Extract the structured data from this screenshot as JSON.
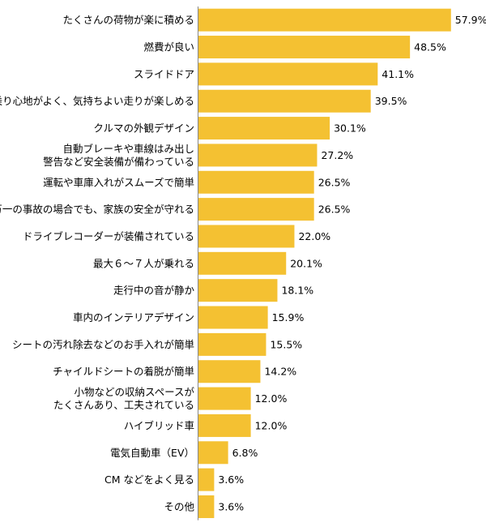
{
  "chart_data": {
    "type": "bar",
    "orientation": "horizontal",
    "bar_color": "#F4C132",
    "text_color": "#000000",
    "value_suffix": "%",
    "xlim": [
      0,
      65
    ],
    "grid": false,
    "categories": [
      [
        "たくさんの荷物が楽に積める"
      ],
      [
        "燃費が良い"
      ],
      [
        "スライドドア"
      ],
      [
        "乗り心地がよく、気持ちよい走りが楽しめる"
      ],
      [
        "クルマの外観デザイン"
      ],
      [
        "自動ブレーキや車線はみ出し",
        "警告など安全装備が備わっている"
      ],
      [
        "運転や車庫入れがスムーズで簡単"
      ],
      [
        "万一の事故の場合でも、家族の安全が守れる"
      ],
      [
        "ドライブレコーダーが装備されている"
      ],
      [
        "最大６～７人が乗れる"
      ],
      [
        "走行中の音が静か"
      ],
      [
        "車内のインテリアデザイン"
      ],
      [
        "シートの汚れ除去などのお手入れが簡単"
      ],
      [
        "チャイルドシートの着脱が簡単"
      ],
      [
        "小物などの収納スペースが",
        "たくさんあり、工夫されている"
      ],
      [
        "ハイブリッド車"
      ],
      [
        "電気自動車（EV）"
      ],
      [
        "CM などをよく見る"
      ],
      [
        "その他"
      ]
    ],
    "values": [
      57.9,
      48.5,
      41.1,
      39.5,
      30.1,
      27.2,
      26.5,
      26.5,
      22.0,
      20.1,
      18.1,
      15.9,
      15.5,
      14.2,
      12.0,
      12.0,
      6.8,
      3.6,
      3.6
    ]
  }
}
